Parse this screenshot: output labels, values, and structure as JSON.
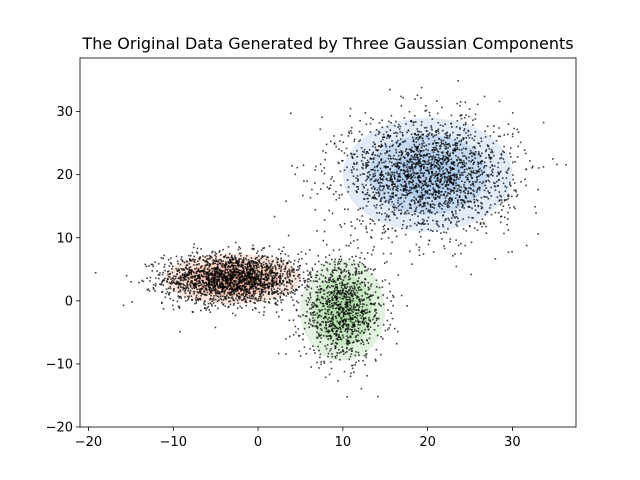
{
  "chart_data": {
    "type": "scatter",
    "title": "The Original Data Generated by Three Gaussian Components",
    "xlabel": "",
    "ylabel": "",
    "xlim": [
      -21.0,
      37.5
    ],
    "ylim": [
      -20,
      38.5
    ],
    "xticks": [
      -20,
      -10,
      0,
      10,
      20,
      30
    ],
    "yticks": [
      -20,
      -10,
      0,
      10,
      20,
      30
    ],
    "xtick_labels": [
      "−20",
      "−10",
      "0",
      "10",
      "20",
      "30"
    ],
    "ytick_labels": [
      "−20",
      "−10",
      "0",
      "10",
      "20",
      "30"
    ],
    "grid": false,
    "legend": "none",
    "point_color": "#000000",
    "components": [
      {
        "mean": [
          -3,
          3.5
        ],
        "std": [
          4.0,
          2.0
        ],
        "weight": 0.4,
        "ellipse_color": "#f7b69a"
      },
      {
        "mean": [
          10,
          -1.5
        ],
        "std": [
          2.5,
          4.0
        ],
        "weight": 0.2,
        "ellipse_color": "#a8dca0"
      },
      {
        "mean": [
          20,
          20
        ],
        "std": [
          5.0,
          4.5
        ],
        "weight": 0.4,
        "ellipse_color": "#a8c8ec"
      }
    ]
  }
}
